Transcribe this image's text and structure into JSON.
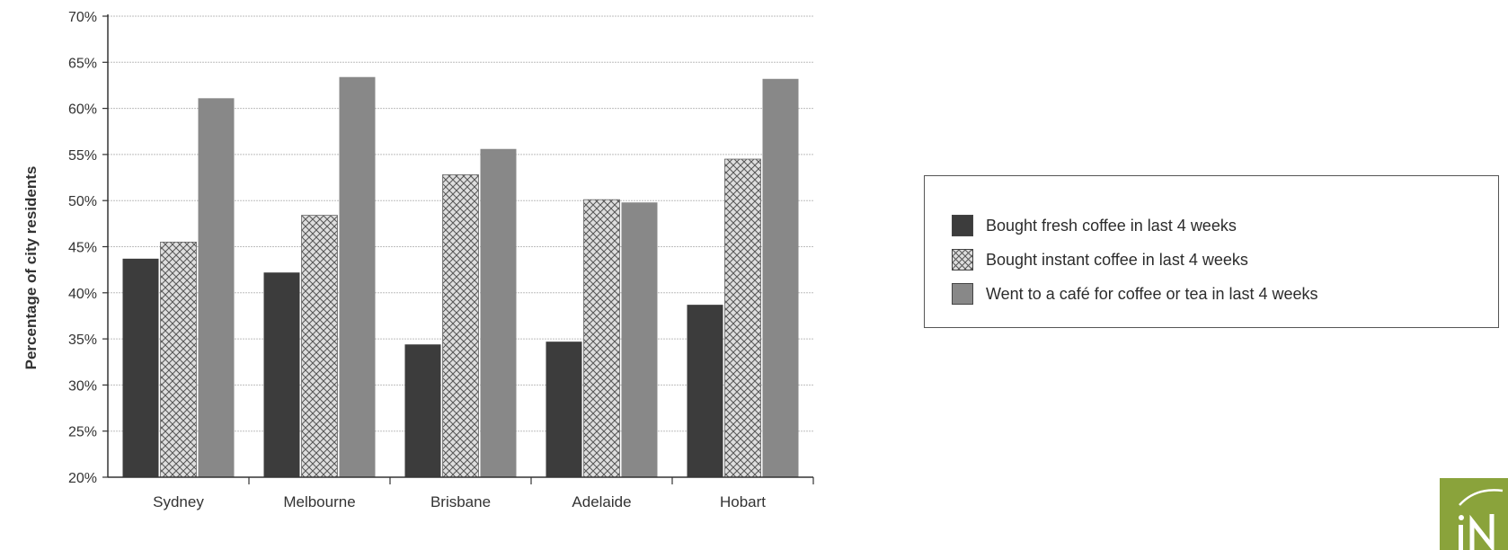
{
  "chart_data": {
    "type": "bar",
    "categories": [
      "Sydney",
      "Melbourne",
      "Brisbane",
      "Adelaide",
      "Hobart"
    ],
    "series": [
      {
        "name": "Bought fresh coffee in last 4 weeks",
        "values": [
          43.7,
          42.2,
          34.4,
          34.7,
          38.7
        ],
        "color": "#3c3c3c",
        "pattern": "solid"
      },
      {
        "name": "Bought instant coffee in last 4 weeks",
        "values": [
          45.5,
          48.4,
          52.8,
          50.1,
          54.5
        ],
        "color": "#dcdcdc",
        "pattern": "crosshatch"
      },
      {
        "name": "Went to a café for coffee or tea in last 4 weeks",
        "values": [
          61.1,
          63.4,
          55.6,
          49.8,
          63.2
        ],
        "color": "#888888",
        "pattern": "solid"
      }
    ],
    "title": "",
    "xlabel": "",
    "ylabel": "Percentage of city residents",
    "ylim": [
      20,
      70
    ],
    "yticks": [
      "20%",
      "25%",
      "30%",
      "35%",
      "40%",
      "45%",
      "50%",
      "55%",
      "60%",
      "65%",
      "70%"
    ],
    "grid": true,
    "legend_position": "right"
  },
  "logo": {
    "color": "#8aa33b"
  }
}
